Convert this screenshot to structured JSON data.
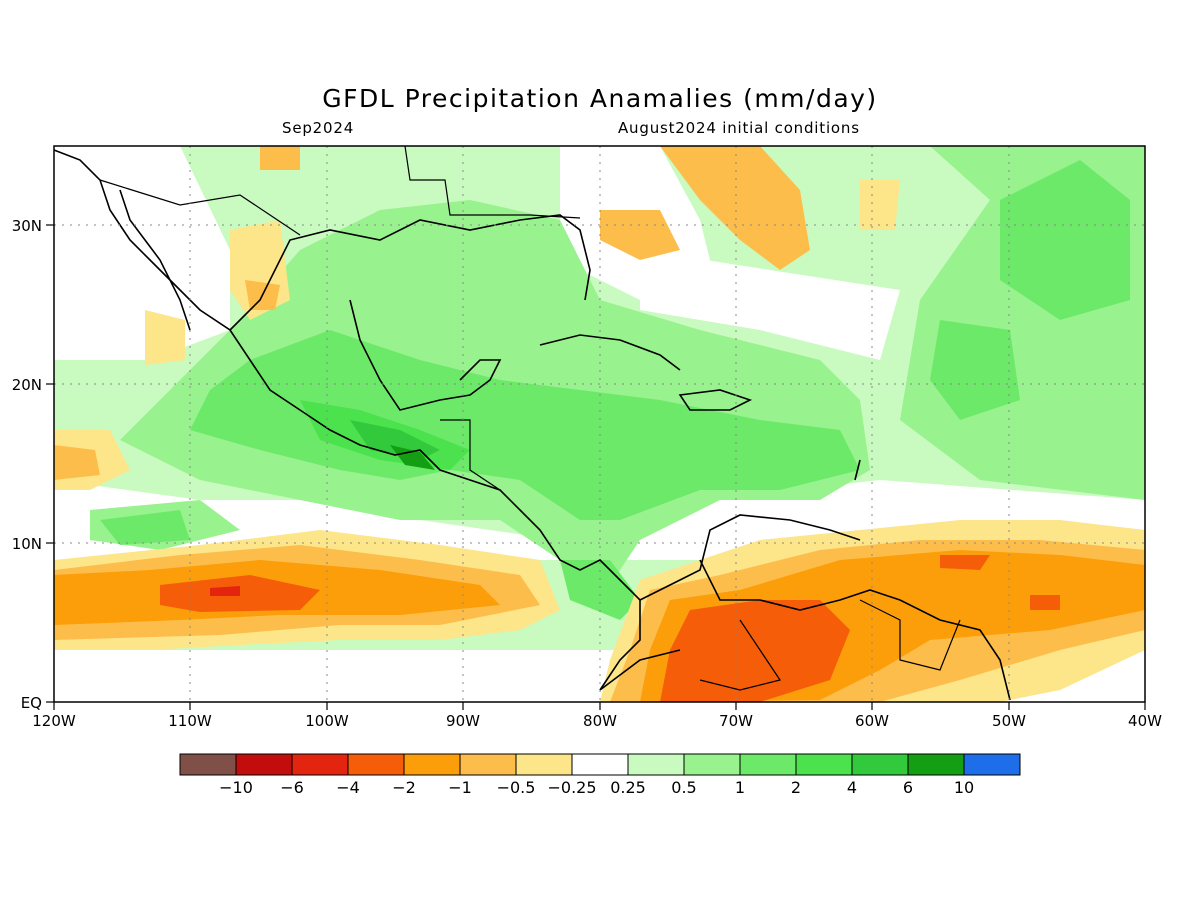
{
  "title": "GFDL Precipitation Anamalies (mm/day)",
  "subtitle_left": "Sep2024",
  "subtitle_right": "August2024 initial conditions",
  "lat_labels": [
    "EQ",
    "10N",
    "20N",
    "30N"
  ],
  "lon_labels": [
    "120W",
    "110W",
    "100W",
    "90W",
    "80W",
    "70W",
    "60W",
    "50W",
    "40W"
  ],
  "colorbar": {
    "colors": [
      "#7f4f48",
      "#c30d0d",
      "#e3240f",
      "#f65d08",
      "#fb9e0a",
      "#fdbd4b",
      "#fde58a",
      "#ffffff",
      "#c9fbc1",
      "#98f28d",
      "#6de96a",
      "#4be24d",
      "#32c93c",
      "#139e14",
      "#1e6eea"
    ],
    "labels": [
      "−10",
      "−6",
      "−4",
      "−2",
      "−1",
      "−0.5",
      "−0.25",
      "0.25",
      "0.5",
      "1",
      "2",
      "4",
      "6",
      "10"
    ]
  },
  "map": {
    "ocean_color": "#ffffff",
    "coast_color": "#000000"
  }
}
